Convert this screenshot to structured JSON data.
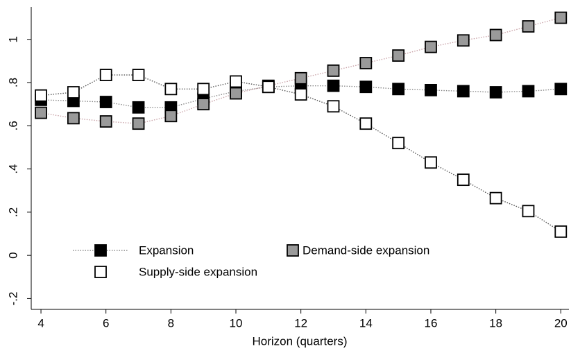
{
  "chart_data": {
    "type": "line",
    "xlabel": "Horizon (quarters)",
    "x": [
      4,
      5,
      6,
      7,
      8,
      9,
      10,
      11,
      12,
      13,
      14,
      15,
      16,
      17,
      18,
      19,
      20
    ],
    "series": [
      {
        "name": "Expansion",
        "color": "#000000",
        "line_color": "#8a8a8a",
        "values": [
          0.72,
          0.715,
          0.71,
          0.685,
          0.685,
          0.725,
          0.76,
          0.78,
          0.785,
          0.785,
          0.78,
          0.77,
          0.765,
          0.76,
          0.755,
          0.76,
          0.77
        ]
      },
      {
        "name": "Demand-side expansion",
        "color": "#9a9a9a",
        "line_color": "#c9a3a8",
        "values": [
          0.66,
          0.635,
          0.62,
          0.61,
          0.645,
          0.7,
          0.75,
          0.785,
          0.82,
          0.855,
          0.89,
          0.925,
          0.965,
          0.995,
          1.02,
          1.06,
          1.1
        ]
      },
      {
        "name": "Supply-side expansion",
        "color": "#ffffff",
        "line_color": "#555555",
        "values": [
          0.74,
          0.755,
          0.835,
          0.835,
          0.77,
          0.77,
          0.805,
          0.78,
          0.745,
          0.69,
          0.61,
          0.52,
          0.43,
          0.35,
          0.265,
          0.205,
          0.11
        ]
      }
    ],
    "xlim": [
      3.7,
      20.25
    ],
    "xticks": [
      4,
      6,
      8,
      10,
      12,
      14,
      16,
      18,
      20
    ],
    "ylim": [
      -0.25,
      1.15
    ],
    "yticks": [
      {
        "value": -0.2,
        "label": "-.2"
      },
      0,
      {
        "value": 0.2,
        "label": ".2"
      },
      {
        "value": 0.4,
        "label": ".4"
      },
      {
        "value": 0.6,
        "label": ".6"
      },
      {
        "value": 0.8,
        "label": ".8"
      },
      1
    ],
    "legend": "lower-left"
  }
}
